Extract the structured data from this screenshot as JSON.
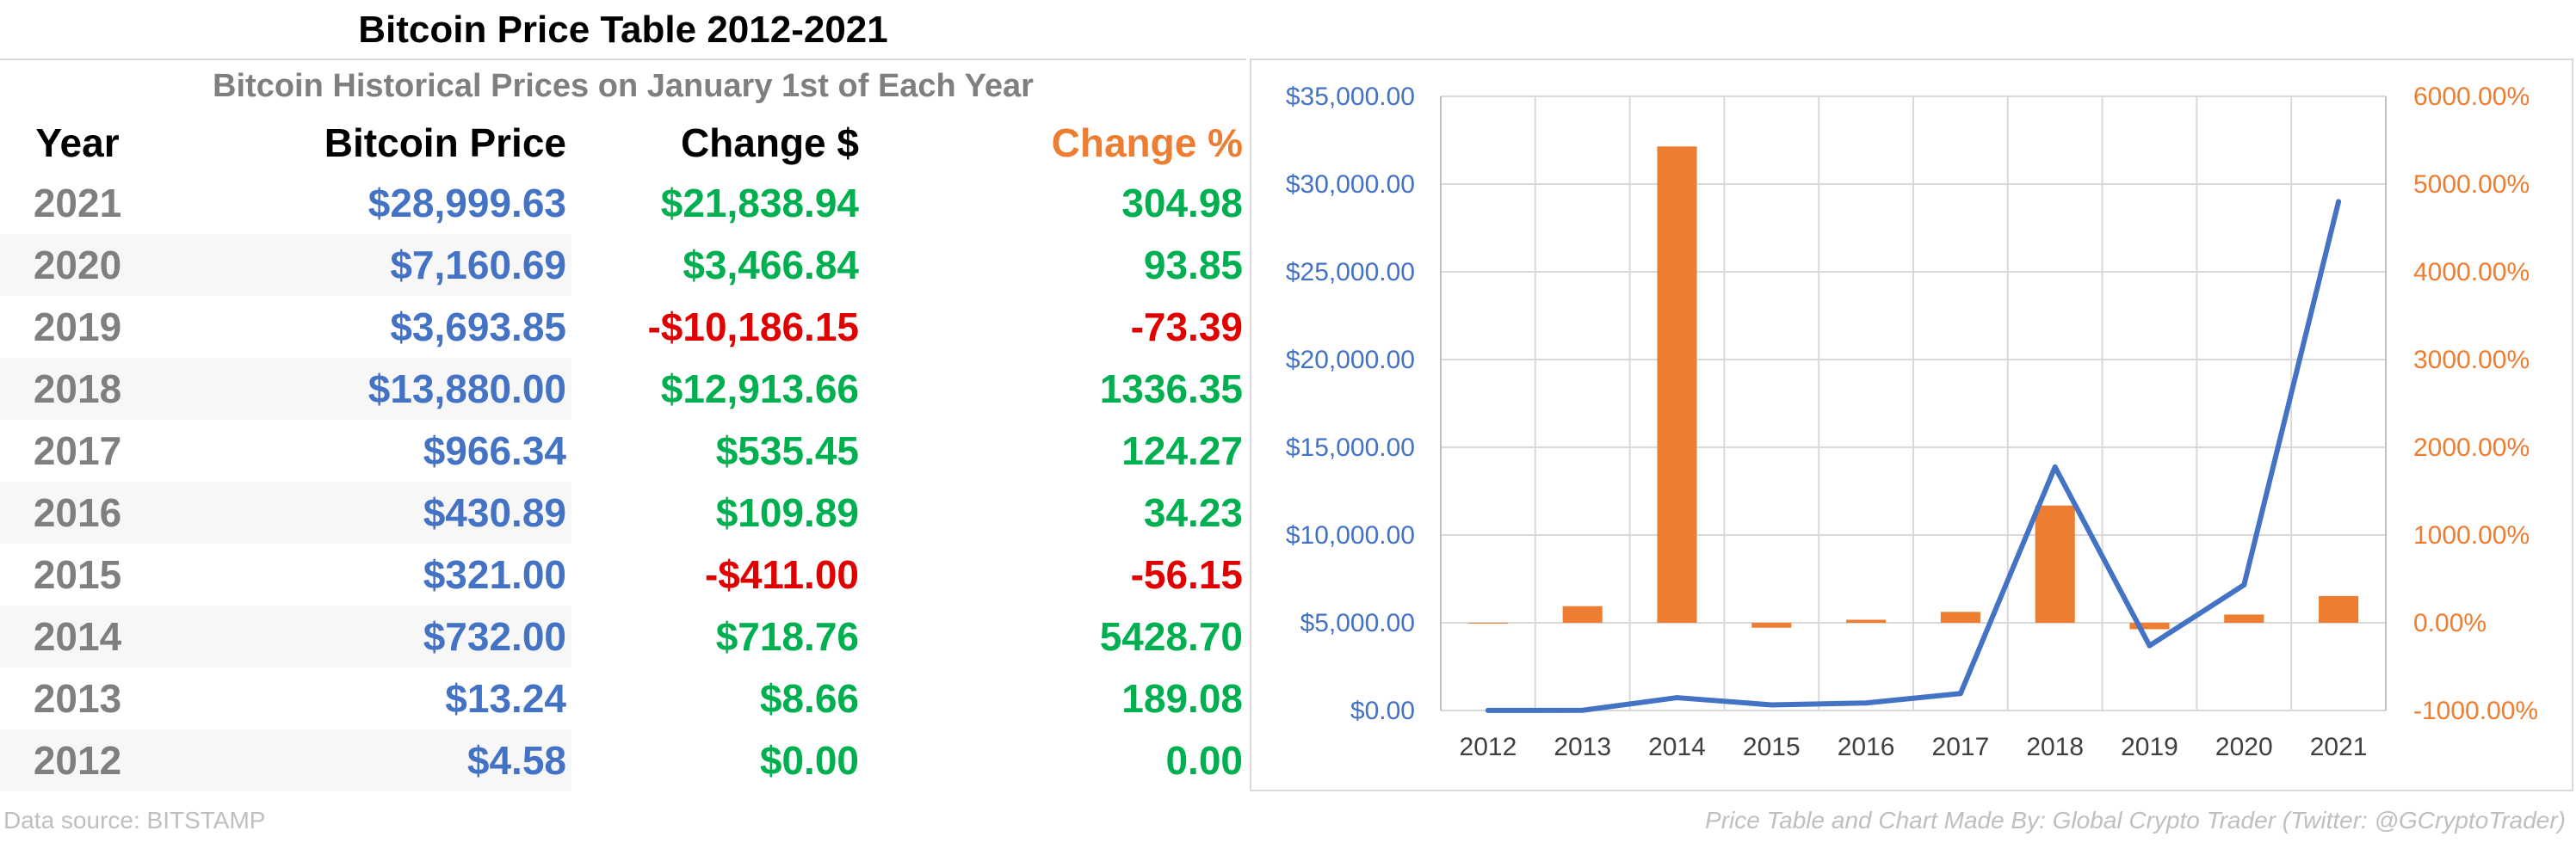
{
  "table": {
    "title": "Bitcoin Price Table 2012-2021",
    "subtitle": "Bitcoin Historical Prices on January 1st of Each Year",
    "headers": {
      "year": "Year",
      "price": "Bitcoin Price",
      "change_usd": "Change $",
      "change_pct": "Change %"
    },
    "rows": [
      {
        "year": "2021",
        "price": "$28,999.63",
        "change_usd": "$21,838.94",
        "change_pct": "304.98",
        "trend": "up"
      },
      {
        "year": "2020",
        "price": "$7,160.69",
        "change_usd": "$3,466.84",
        "change_pct": "93.85",
        "trend": "up"
      },
      {
        "year": "2019",
        "price": "$3,693.85",
        "change_usd": "-$10,186.15",
        "change_pct": "-73.39",
        "trend": "down"
      },
      {
        "year": "2018",
        "price": "$13,880.00",
        "change_usd": "$12,913.66",
        "change_pct": "1336.35",
        "trend": "up"
      },
      {
        "year": "2017",
        "price": "$966.34",
        "change_usd": "$535.45",
        "change_pct": "124.27",
        "trend": "up"
      },
      {
        "year": "2016",
        "price": "$430.89",
        "change_usd": "$109.89",
        "change_pct": "34.23",
        "trend": "up"
      },
      {
        "year": "2015",
        "price": "$321.00",
        "change_usd": "-$411.00",
        "change_pct": "-56.15",
        "trend": "down"
      },
      {
        "year": "2014",
        "price": "$732.00",
        "change_usd": "$718.76",
        "change_pct": "5428.70",
        "trend": "up"
      },
      {
        "year": "2013",
        "price": "$13.24",
        "change_usd": "$8.66",
        "change_pct": "189.08",
        "trend": "up"
      },
      {
        "year": "2012",
        "price": "$4.58",
        "change_usd": "$0.00",
        "change_pct": "0.00",
        "trend": "up"
      }
    ]
  },
  "footer": {
    "source": "Data source: BITSTAMP",
    "credit": "Price Table and Chart Made By: Global Crypto Trader (Twitter: @GCryptoTrader)"
  },
  "colors": {
    "price_blue": "#4472c4",
    "change_orange": "#ed7d31",
    "positive_green": "#00b050",
    "negative_red": "#e00000",
    "year_gray": "#7f7f7f"
  },
  "chart_data": {
    "type": "bar",
    "title": "",
    "xlabel": "",
    "ylabel": "",
    "categories": [
      "2012",
      "2013",
      "2014",
      "2015",
      "2016",
      "2017",
      "2018",
      "2019",
      "2020",
      "2021"
    ],
    "series": [
      {
        "type": "line",
        "axis": "left",
        "color": "#4472c4",
        "values": [
          4.58,
          13.24,
          732.0,
          321.0,
          430.89,
          966.34,
          13880.0,
          3693.85,
          7160.69,
          28999.63
        ]
      },
      {
        "type": "bar",
        "axis": "right",
        "color": "#ed7d31",
        "values": [
          0.0,
          189.08,
          5428.7,
          -56.15,
          34.23,
          124.27,
          1336.35,
          -73.39,
          93.85,
          304.98
        ]
      }
    ],
    "y_left": {
      "lim": [
        0,
        35000
      ],
      "ticks": [
        0,
        5000,
        10000,
        15000,
        20000,
        25000,
        30000,
        35000
      ],
      "tick_labels": [
        "$0.00",
        "$5,000.00",
        "$10,000.00",
        "$15,000.00",
        "$20,000.00",
        "$25,000.00",
        "$30,000.00",
        "$35,000.00"
      ]
    },
    "y_right": {
      "lim": [
        -1000,
        6000
      ],
      "ticks": [
        -1000,
        0,
        1000,
        2000,
        3000,
        4000,
        5000,
        6000
      ],
      "tick_labels": [
        "-1000.00%",
        "0.00%",
        "1000.00%",
        "2000.00%",
        "3000.00%",
        "4000.00%",
        "5000.00%",
        "6000.00%"
      ]
    },
    "grid": true,
    "legend": "none"
  }
}
